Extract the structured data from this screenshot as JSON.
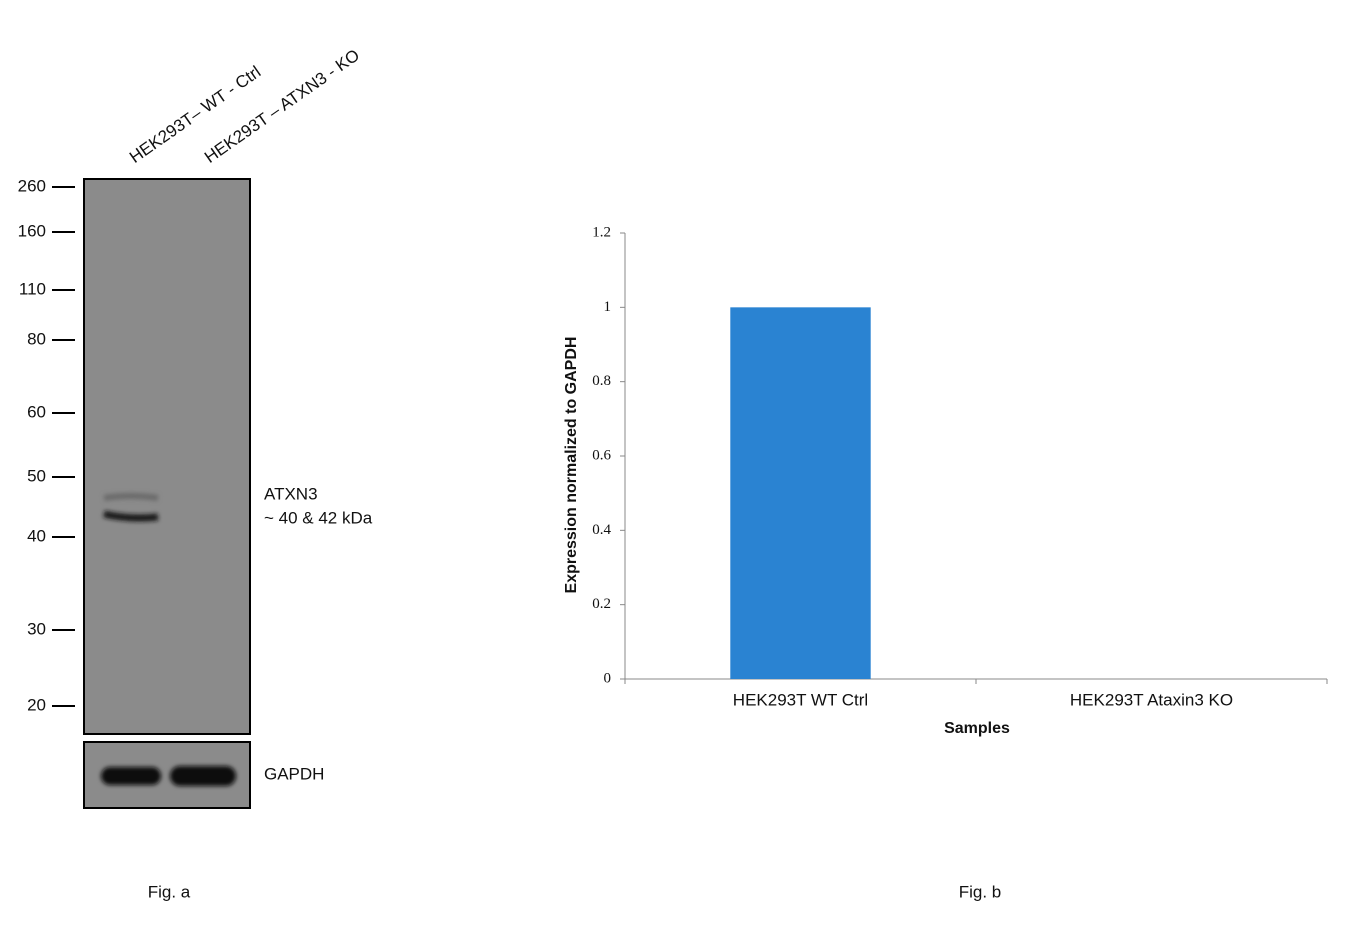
{
  "blot": {
    "lanes": [
      "HEK293T– WT - Ctrl",
      "HEK293T – ATXN3 - KO"
    ],
    "markers": [
      260,
      160,
      110,
      80,
      60,
      50,
      40,
      30,
      20
    ],
    "band_label": [
      "ATXN3",
      "~ 40 & 42 kDa"
    ],
    "loading_control": "GAPDH",
    "caption": "Fig. a"
  },
  "chart_data": {
    "type": "bar",
    "categories": [
      "HEK293T WT Ctrl",
      "HEK293T Ataxin3 KO"
    ],
    "values": [
      1,
      0
    ],
    "color": "#2a83d2",
    "ylim": [
      0,
      1.2
    ],
    "yticks": [
      0,
      0.2,
      0.4,
      0.6,
      0.8,
      1,
      1.2
    ],
    "xlabel": "Samples",
    "ylabel": "Expression  normalized to GAPDH",
    "caption": "Fig. b"
  }
}
